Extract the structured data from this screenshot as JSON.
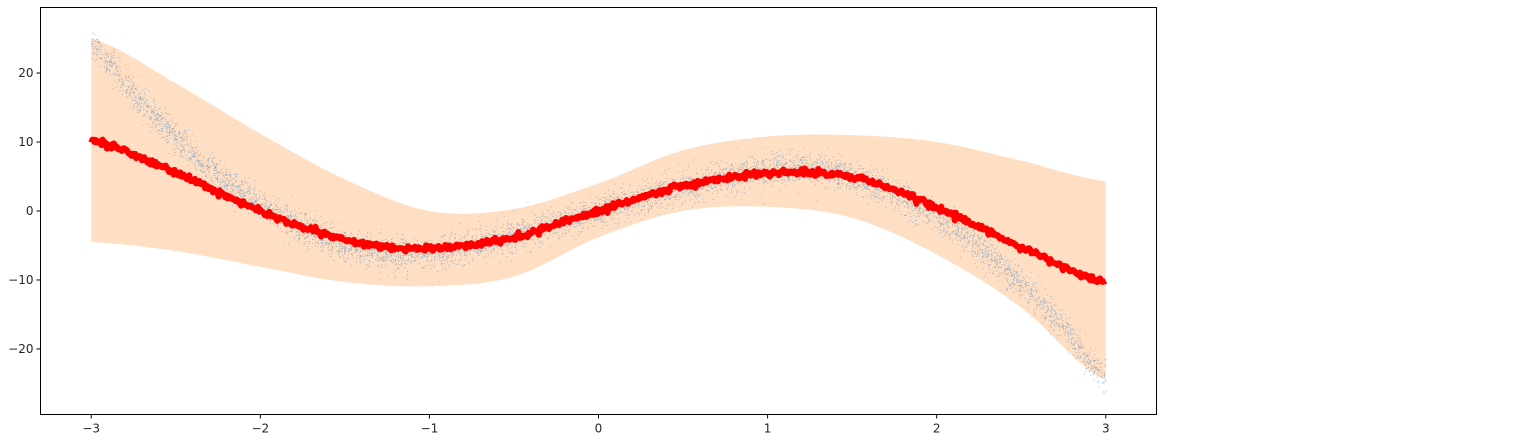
{
  "chart_data": {
    "type": "scatter",
    "title": "",
    "xlabel": "",
    "ylabel": "",
    "xlim": [
      -3.3,
      3.3
    ],
    "ylim": [
      -29.5,
      29.5
    ],
    "x_ticks": [
      -3,
      -2,
      -1,
      0,
      1,
      2,
      3
    ],
    "y_ticks": [
      -20,
      -10,
      0,
      10,
      20
    ],
    "x_tick_labels": [
      "−3",
      "−2",
      "−1",
      "0",
      "1",
      "2",
      "3"
    ],
    "y_tick_labels": [
      "−20",
      "−10",
      "0",
      "10",
      "20"
    ],
    "grid": false,
    "legend": false,
    "series": [
      {
        "kind": "band",
        "color": "#ffdfc4",
        "x": [
          -3.0,
          -2.5,
          -2.0,
          -1.5,
          -1.0,
          -0.5,
          0.0,
          0.5,
          1.0,
          1.5,
          2.0,
          2.5,
          3.0
        ],
        "upper": [
          25.0,
          18.5,
          11.2,
          4.6,
          0.0,
          0.3,
          4.0,
          8.8,
          10.8,
          11.0,
          10.0,
          7.3,
          4.3
        ],
        "lower": [
          -4.5,
          -5.8,
          -8.1,
          -10.3,
          -10.9,
          -9.5,
          -3.8,
          0.0,
          0.6,
          -1.0,
          -6.3,
          -14.0,
          -24.5
        ]
      },
      {
        "kind": "scatter",
        "color": "#3d7ab8",
        "x": [
          -3.0,
          -2.75,
          -2.5,
          -2.25,
          -2.0,
          -1.75,
          -1.5,
          -1.25,
          -1.0,
          -0.75,
          -0.5,
          -0.25,
          0.0,
          0.25,
          0.5,
          0.75,
          1.0,
          1.25,
          1.5,
          1.75,
          2.0,
          2.25,
          2.5,
          2.75,
          3.0
        ],
        "y": [
          24.0,
          16.9,
          10.6,
          5.2,
          1.0,
          -2.4,
          -4.9,
          -6.3,
          -6.0,
          -4.8,
          -3.5,
          -1.8,
          0.0,
          1.8,
          3.5,
          4.8,
          6.0,
          6.3,
          4.9,
          2.4,
          -1.0,
          -5.2,
          -10.6,
          -16.9,
          -24.0
        ],
        "n": 10000
      },
      {
        "kind": "line",
        "color": "#ff0000",
        "x": [
          -3.0,
          -2.5,
          -2.0,
          -1.5,
          -1.0,
          -0.5,
          0.0,
          0.5,
          1.0,
          1.5,
          2.0,
          2.5,
          3.0
        ],
        "y": [
          10.2,
          5.5,
          0.0,
          -4.2,
          -5.4,
          -3.8,
          0.0,
          3.6,
          5.5,
          5.0,
          0.5,
          -5.2,
          -10.3
        ]
      }
    ]
  }
}
